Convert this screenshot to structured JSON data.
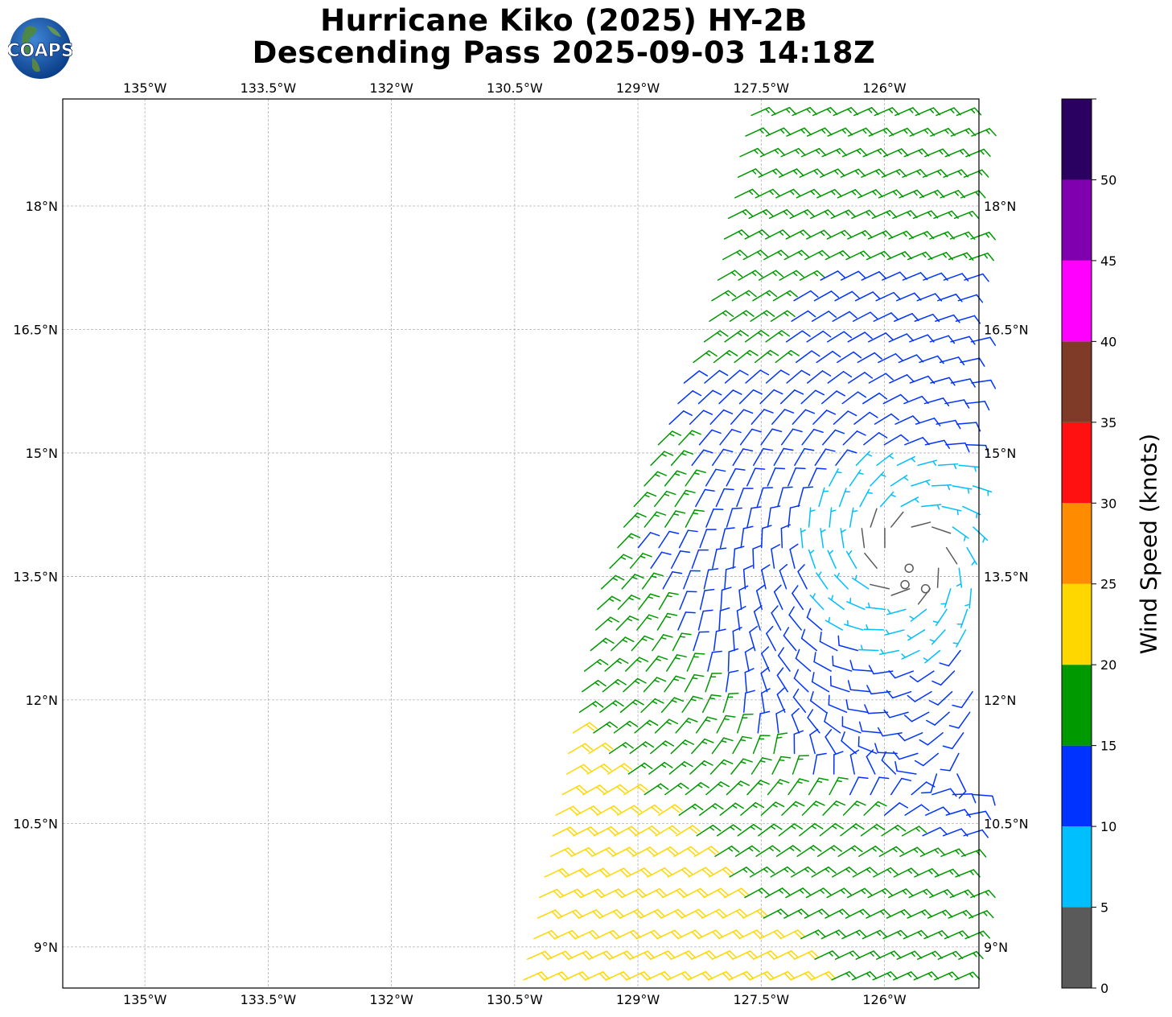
{
  "title": {
    "line1": "Hurricane Kiko (2025) HY-2B",
    "line2": "Descending Pass 2025-09-03 14:18Z"
  },
  "logo": {
    "text": "COAPS",
    "icon": "globe-logo-icon"
  },
  "map": {
    "lon_range": [
      -136.0,
      -124.85
    ],
    "lat_range": [
      8.5,
      19.3
    ],
    "lon_ticks": [
      {
        "value": -135.0,
        "label": "135°W"
      },
      {
        "value": -133.5,
        "label": "133.5°W"
      },
      {
        "value": -132.0,
        "label": "132°W"
      },
      {
        "value": -130.5,
        "label": "130.5°W"
      },
      {
        "value": -129.0,
        "label": "129°W"
      },
      {
        "value": -127.5,
        "label": "127.5°W"
      },
      {
        "value": -126.0,
        "label": "126°W"
      }
    ],
    "lat_ticks": [
      {
        "value": 9.0,
        "label": "9°N"
      },
      {
        "value": 10.5,
        "label": "10.5°N"
      },
      {
        "value": 12.0,
        "label": "12°N"
      },
      {
        "value": 13.5,
        "label": "13.5°N"
      },
      {
        "value": 15.0,
        "label": "15°N"
      },
      {
        "value": 16.5,
        "label": "16.5°N"
      },
      {
        "value": 18.0,
        "label": "18°N"
      }
    ],
    "gridlines": true,
    "storm_center": {
      "lon": -125.7,
      "lat": 13.75
    }
  },
  "colorbar": {
    "label": "Wind Speed (knots)",
    "range": [
      0,
      55
    ],
    "tick_values": [
      0,
      5,
      10,
      15,
      20,
      25,
      30,
      35,
      40,
      45,
      50
    ],
    "tick_labels": [
      "0",
      "5",
      "10",
      "15",
      "20",
      "25",
      "30",
      "35",
      "40",
      "45",
      "50"
    ],
    "bins": [
      {
        "from": 0,
        "to": 5,
        "color": "#5a5a5a"
      },
      {
        "from": 5,
        "to": 10,
        "color": "#00bfff"
      },
      {
        "from": 10,
        "to": 15,
        "color": "#0033ff"
      },
      {
        "from": 15,
        "to": 20,
        "color": "#009900"
      },
      {
        "from": 20,
        "to": 25,
        "color": "#ffd700"
      },
      {
        "from": 25,
        "to": 30,
        "color": "#ff8c00"
      },
      {
        "from": 30,
        "to": 35,
        "color": "#ff1111"
      },
      {
        "from": 35,
        "to": 40,
        "color": "#7f3a28"
      },
      {
        "from": 40,
        "to": 45,
        "color": "#ff00ff"
      },
      {
        "from": 45,
        "to": 50,
        "color": "#8000b0"
      },
      {
        "from": 50,
        "to": 55,
        "color": "#2a0060"
      }
    ]
  },
  "wind_barbs": {
    "units": "knots",
    "swath_left_edge_lon": [
      {
        "lat": 8.5,
        "lon": -130.4
      },
      {
        "lat": 13.5,
        "lon": -129.4
      },
      {
        "lat": 16.5,
        "lon": -128.15
      },
      {
        "lat": 19.3,
        "lon": -127.6
      }
    ],
    "swath_right_edge_lon": -124.85,
    "calm_points": [
      {
        "lon": -125.7,
        "lat": 13.6
      },
      {
        "lon": -125.75,
        "lat": 13.4
      },
      {
        "lon": -125.5,
        "lat": 13.35
      }
    ]
  }
}
